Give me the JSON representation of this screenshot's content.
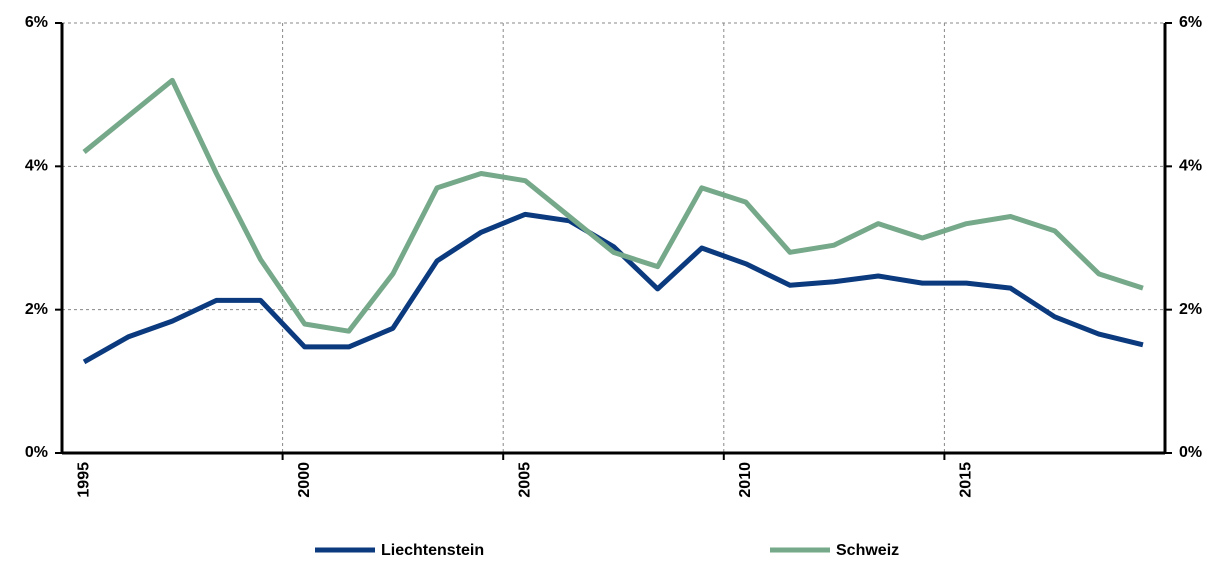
{
  "chart_data": {
    "type": "line",
    "categories": [
      "1995",
      null,
      null,
      null,
      null,
      "2000",
      null,
      null,
      null,
      null,
      "2005",
      null,
      null,
      null,
      null,
      "2010",
      null,
      null,
      null,
      null,
      "2015",
      null,
      null,
      null,
      null
    ],
    "series": [
      {
        "name": "Liechtenstein",
        "color": "#0b3a7e",
        "values": [
          1.27,
          1.62,
          1.84,
          2.13,
          2.13,
          1.48,
          1.48,
          1.74,
          2.68,
          3.08,
          3.33,
          3.24,
          2.88,
          2.29,
          2.86,
          2.64,
          2.34,
          2.39,
          2.47,
          2.37,
          2.37,
          2.3,
          1.9,
          1.66,
          1.51
        ]
      },
      {
        "name": "Schweiz",
        "color": "#76a88a",
        "values": [
          4.2,
          4.7,
          5.2,
          3.9,
          2.7,
          1.8,
          1.7,
          2.5,
          3.7,
          3.9,
          3.8,
          3.3,
          2.8,
          2.6,
          3.7,
          3.5,
          2.8,
          2.9,
          3.2,
          3.0,
          3.2,
          3.3,
          3.1,
          2.5,
          2.3
        ]
      }
    ],
    "ylim": [
      0,
      6
    ],
    "yticks": [
      {
        "value": 0,
        "label": "0%"
      },
      {
        "value": 2,
        "label": "2%"
      },
      {
        "value": 4,
        "label": "4%"
      },
      {
        "value": 6,
        "label": "6%"
      }
    ],
    "y2lim": [
      0,
      6
    ],
    "y2ticks": [
      {
        "value": 0,
        "label": "0%"
      },
      {
        "value": 2,
        "label": "2%"
      },
      {
        "value": 4,
        "label": "4%"
      },
      {
        "value": 6,
        "label": "6%"
      }
    ],
    "grid": true,
    "legend": "bottom"
  }
}
